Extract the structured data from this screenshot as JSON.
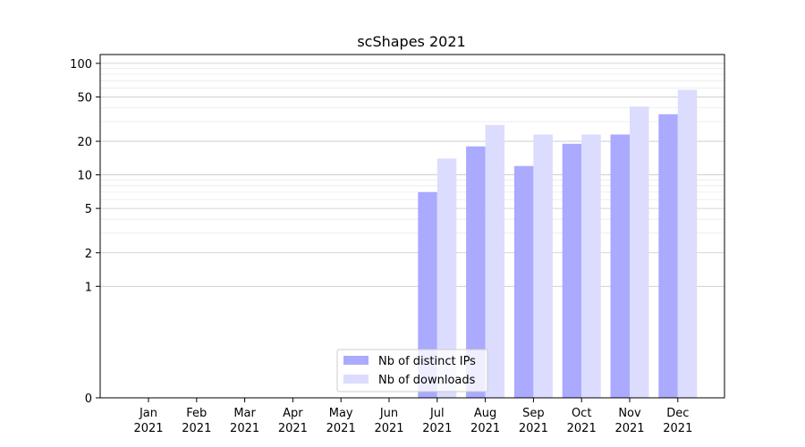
{
  "chart_data": {
    "type": "bar",
    "title": "scShapes 2021",
    "xlabel": "",
    "ylabel": "",
    "y_scale": "symlog",
    "ylim": [
      0,
      120
    ],
    "y_major_ticks": [
      0,
      1,
      2,
      5,
      10,
      20,
      50,
      100
    ],
    "y_minor_ticks": [
      3,
      4,
      6,
      7,
      8,
      9,
      30,
      40,
      60,
      70,
      80,
      90
    ],
    "grid": "horizontal",
    "legend_position": "bottom-center",
    "categories": [
      [
        "Jan",
        "2021"
      ],
      [
        "Feb",
        "2021"
      ],
      [
        "Mar",
        "2021"
      ],
      [
        "Apr",
        "2021"
      ],
      [
        "May",
        "2021"
      ],
      [
        "Jun",
        "2021"
      ],
      [
        "Jul",
        "2021"
      ],
      [
        "Aug",
        "2021"
      ],
      [
        "Sep",
        "2021"
      ],
      [
        "Oct",
        "2021"
      ],
      [
        "Nov",
        "2021"
      ],
      [
        "Dec",
        "2021"
      ]
    ],
    "series": [
      {
        "name": "Nb of distinct IPs",
        "color": "#aaaaff",
        "values": [
          0,
          0,
          0,
          0,
          0,
          0,
          7,
          18,
          12,
          19,
          23,
          35
        ]
      },
      {
        "name": "Nb of downloads",
        "color": "#dcdcfe",
        "values": [
          0,
          0,
          0,
          0,
          0,
          0,
          14,
          28,
          23,
          23,
          41,
          58
        ]
      }
    ]
  }
}
